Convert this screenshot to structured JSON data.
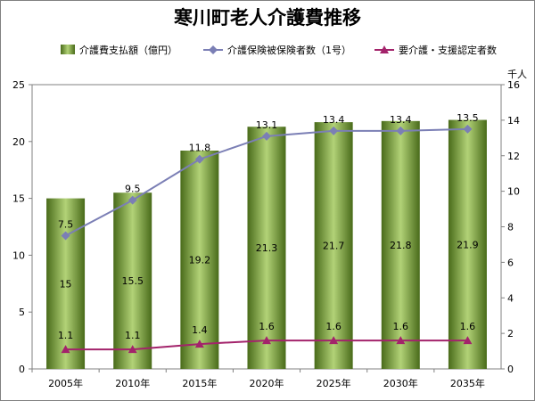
{
  "chart_data": {
    "type": "bar+line",
    "title": "寒川町老人介護費推移",
    "categories": [
      "2005年",
      "2010年",
      "2015年",
      "2020年",
      "2025年",
      "2030年",
      "2035年"
    ],
    "series": [
      {
        "name": "介護費支払額（億円）",
        "type": "bar",
        "axis": "left",
        "values": [
          15,
          15.5,
          19.2,
          21.3,
          21.7,
          21.8,
          21.9
        ],
        "color": "#6f9a2f"
      },
      {
        "name": "介護保険被保険者数（1号）",
        "type": "line",
        "axis": "right",
        "values": [
          7.5,
          9.5,
          11.8,
          13.1,
          13.4,
          13.4,
          13.5
        ],
        "color": "#7b7fb5",
        "marker": "diamond"
      },
      {
        "name": "要介護・支援認定者数",
        "type": "line",
        "axis": "right",
        "values": [
          1.1,
          1.1,
          1.4,
          1.6,
          1.6,
          1.6,
          1.6
        ],
        "color": "#a3236b",
        "marker": "triangle"
      }
    ],
    "y_left": {
      "min": 0,
      "max": 25,
      "ticks": [
        "0",
        "5",
        "10",
        "15",
        "20",
        "25"
      ]
    },
    "y_right": {
      "min": 0,
      "max": 16,
      "label": "千人",
      "ticks": [
        "0",
        "2",
        "4",
        "6",
        "8",
        "10",
        "12",
        "14",
        "16"
      ]
    },
    "grid": false,
    "legend_position": "top"
  }
}
